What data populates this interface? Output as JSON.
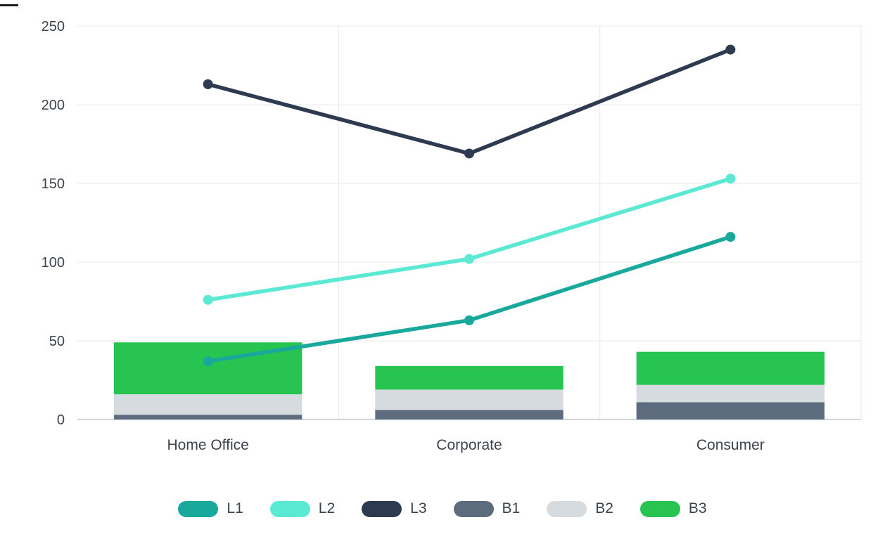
{
  "chart_data": {
    "type": "combo",
    "title": "",
    "xlabel": "",
    "ylabel": "",
    "categories": [
      "Home Office",
      "Corporate",
      "Consumer"
    ],
    "ylim": [
      0,
      250
    ],
    "yticks": [
      0,
      50,
      100,
      150,
      200,
      250
    ],
    "grid": true,
    "legend_position": "bottom",
    "bar_series": [
      {
        "name": "B1",
        "color": "#5d6b7e",
        "values": [
          3,
          6,
          11
        ]
      },
      {
        "name": "B2",
        "color": "#d6dbe0",
        "values": [
          13,
          13,
          11
        ]
      },
      {
        "name": "B3",
        "color": "#28c452",
        "values": [
          33,
          15,
          21
        ]
      }
    ],
    "line_series": [
      {
        "name": "L1",
        "color": "#18a89c",
        "values": [
          37,
          63,
          116
        ]
      },
      {
        "name": "L2",
        "color": "#5ce9d4",
        "values": [
          76,
          102,
          153
        ]
      },
      {
        "name": "L3",
        "color": "#2d3a4f",
        "values": [
          213,
          169,
          235
        ]
      }
    ],
    "legend": [
      {
        "label": "L1",
        "color": "#18a89c"
      },
      {
        "label": "L2",
        "color": "#5ce9d4"
      },
      {
        "label": "L3",
        "color": "#2d3a4f"
      },
      {
        "label": "B1",
        "color": "#5d6b7e"
      },
      {
        "label": "B2",
        "color": "#d6dbe0"
      },
      {
        "label": "B3",
        "color": "#28c452"
      }
    ],
    "colors": {
      "grid": "#e6e8ec",
      "axis": "#c2c7cd",
      "text": "#3d434e"
    }
  }
}
